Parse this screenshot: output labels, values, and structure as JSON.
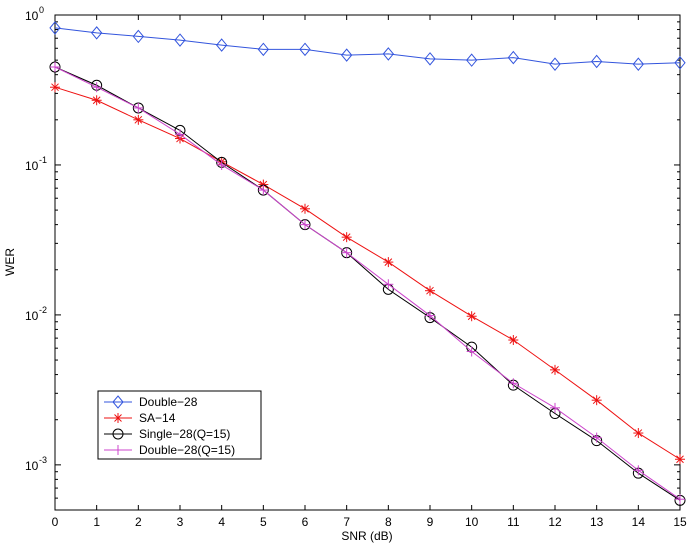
{
  "chart_data": {
    "type": "line",
    "xlabel": "SNR (dB)",
    "ylabel": "WER",
    "xlim": [
      0,
      15
    ],
    "ylim": [
      0.0005,
      1
    ],
    "yscale": "log",
    "x_ticks": [
      "0",
      "1",
      "2",
      "3",
      "4",
      "5",
      "6",
      "7",
      "8",
      "9",
      "10",
      "11",
      "12",
      "13",
      "14",
      "15"
    ],
    "y_ticks": [
      {
        "base": "10",
        "exp": "0",
        "value": 1
      },
      {
        "base": "10",
        "exp": "-1",
        "value": 0.1
      },
      {
        "base": "10",
        "exp": "-2",
        "value": 0.01
      },
      {
        "base": "10",
        "exp": "-3",
        "value": 0.001
      }
    ],
    "legend_position": "bottom-left",
    "x": [
      0,
      1,
      2,
      3,
      4,
      5,
      6,
      7,
      8,
      9,
      10,
      11,
      12,
      13,
      14,
      15
    ],
    "series": [
      {
        "name": "Double−28",
        "color": "#3355dd",
        "marker": "diamond",
        "values": [
          0.82,
          0.76,
          0.72,
          0.68,
          0.63,
          0.59,
          0.59,
          0.54,
          0.55,
          0.51,
          0.5,
          0.52,
          0.47,
          0.49,
          0.47,
          0.48
        ]
      },
      {
        "name": "SA−14",
        "color": "#ee1111",
        "marker": "star",
        "values": [
          0.33,
          0.27,
          0.2,
          0.15,
          0.105,
          0.074,
          0.051,
          0.033,
          0.0225,
          0.0145,
          0.0098,
          0.0068,
          0.0043,
          0.0027,
          0.00163,
          0.00109
        ]
      },
      {
        "name": "Single−28(Q=15)",
        "color": "#000000",
        "marker": "circle",
        "values": [
          0.45,
          0.34,
          0.24,
          0.17,
          0.104,
          0.068,
          0.04,
          0.026,
          0.0148,
          0.0096,
          0.0061,
          0.0034,
          0.0022,
          0.00145,
          0.00088,
          0.00058
        ]
      },
      {
        "name": "Double−28(Q=15)",
        "color": "#cc44cc",
        "marker": "plus",
        "values": [
          0.45,
          0.33,
          0.24,
          0.16,
          0.1,
          0.068,
          0.04,
          0.026,
          0.016,
          0.0099,
          0.0057,
          0.0035,
          0.0024,
          0.00152,
          0.00092,
          0.00059
        ]
      }
    ]
  }
}
